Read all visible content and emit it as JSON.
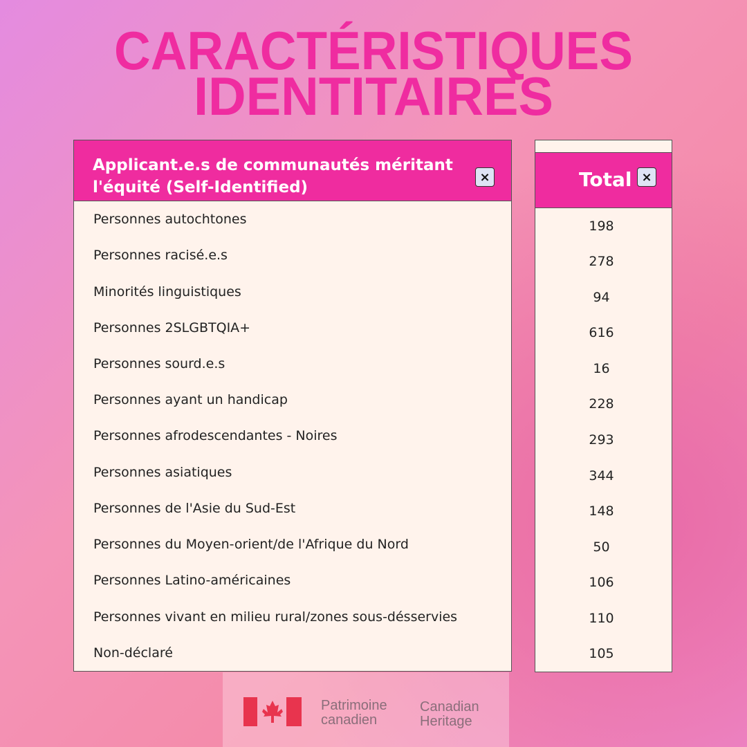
{
  "title_lines": [
    "CARACTÉRISTIQUES",
    "IDENTITAIRES"
  ],
  "table": {
    "header": "Applicant.e.s de communautés méritant l'équité (Self-Identified)",
    "total_header": "Total",
    "rows": [
      [
        "Personnes autochtones",
        "198"
      ],
      [
        "Personnes racisé.e.s",
        "278"
      ],
      [
        "Minorités linguistiques",
        "94"
      ],
      [
        "Personnes 2SLGBTQIA+",
        "616"
      ],
      [
        "Personnes sourd.e.s",
        "16"
      ],
      [
        "Personnes ayant un handicap",
        "228"
      ],
      [
        "Personnes afrodescendantes - Noires",
        "293"
      ],
      [
        "Personnes asiatiques",
        "344"
      ],
      [
        "Personnes de l'Asie du Sud-Est",
        "148"
      ],
      [
        "Personnes du Moyen-orient/de l'Afrique du Nord",
        "50"
      ],
      [
        "Personnes Latino-américaines",
        "106"
      ],
      [
        "Personnes vivant en milieu rural/zones sous-désservies",
        "110"
      ],
      [
        "Non-déclaré",
        "105"
      ]
    ]
  },
  "logo": {
    "fr_lines": [
      "Patrimoine",
      "canadien"
    ],
    "en_lines": [
      "Canadian",
      "Heritage"
    ]
  }
}
